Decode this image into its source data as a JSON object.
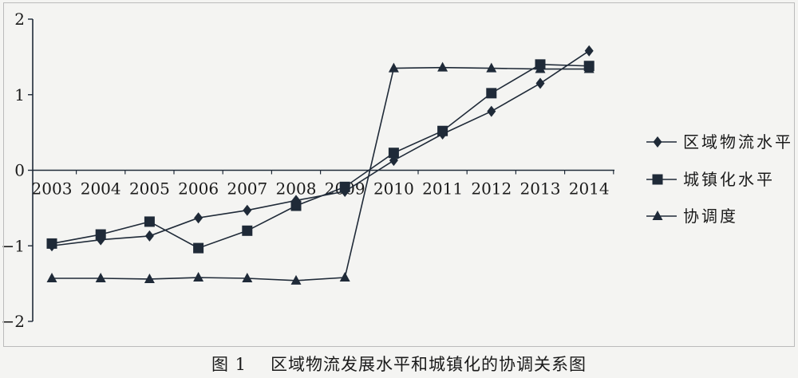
{
  "chart_data": {
    "type": "line",
    "title": "",
    "xlabel": "",
    "ylabel": "",
    "categories": [
      "2003",
      "2004",
      "2005",
      "2006",
      "2007",
      "2008",
      "2009",
      "2010",
      "2011",
      "2012",
      "2013",
      "2014"
    ],
    "ylim": [
      -2,
      2
    ],
    "yticks": [
      -2,
      -1,
      0,
      1,
      2
    ],
    "ytick_labels": [
      "−2",
      "−1",
      "0",
      "1",
      "2"
    ],
    "grid": false,
    "legend_position": "right",
    "series": [
      {
        "name": "区域物流水平",
        "marker": "diamond",
        "values": [
          -1.0,
          -0.92,
          -0.87,
          -0.63,
          -0.53,
          -0.4,
          -0.28,
          0.13,
          0.48,
          0.78,
          1.15,
          1.58
        ]
      },
      {
        "name": "城镇化水平",
        "marker": "square",
        "values": [
          -0.97,
          -0.85,
          -0.68,
          -1.03,
          -0.8,
          -0.47,
          -0.22,
          0.23,
          0.52,
          1.02,
          1.4,
          1.38
        ]
      },
      {
        "name": "协调度",
        "marker": "triangle",
        "values": [
          -1.43,
          -1.43,
          -1.44,
          -1.42,
          -1.43,
          -1.46,
          -1.42,
          1.35,
          1.36,
          1.35,
          1.34,
          1.34
        ]
      }
    ],
    "colors": {
      "line": "#1f2a38",
      "marker": "#1f2a38"
    }
  },
  "caption": {
    "number": "图 1",
    "text": "区域物流发展水平和城镇化的协调关系图"
  }
}
